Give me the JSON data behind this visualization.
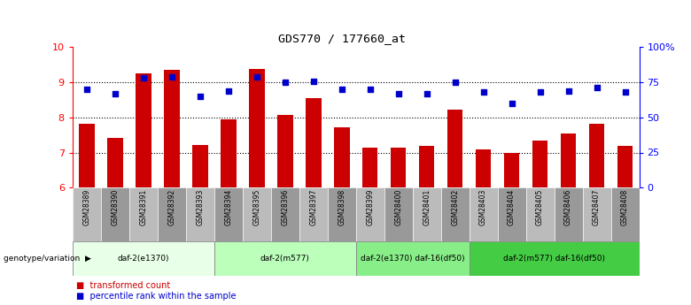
{
  "title": "GDS770 / 177660_at",
  "samples": [
    "GSM28389",
    "GSM28390",
    "GSM28391",
    "GSM28392",
    "GSM28393",
    "GSM28394",
    "GSM28395",
    "GSM28396",
    "GSM28397",
    "GSM28398",
    "GSM28399",
    "GSM28400",
    "GSM28401",
    "GSM28402",
    "GSM28403",
    "GSM28404",
    "GSM28405",
    "GSM28406",
    "GSM28407",
    "GSM28408"
  ],
  "bar_values": [
    7.82,
    7.42,
    9.25,
    9.35,
    7.22,
    7.95,
    9.38,
    8.08,
    8.55,
    7.72,
    7.15,
    7.15,
    7.18,
    8.22,
    7.1,
    6.98,
    7.35,
    7.55,
    7.82,
    7.18
  ],
  "dot_values_pct": [
    70,
    67,
    78,
    79,
    65,
    69,
    79,
    75,
    76,
    70,
    70,
    67,
    67,
    75,
    68,
    60,
    68,
    69,
    71,
    68
  ],
  "ylim_left": [
    6,
    10
  ],
  "ylim_right": [
    0,
    100
  ],
  "yticks_left": [
    6,
    7,
    8,
    9,
    10
  ],
  "yticks_right": [
    0,
    25,
    50,
    75,
    100
  ],
  "ytick_labels_right": [
    "0",
    "25",
    "50",
    "75",
    "100%"
  ],
  "bar_color": "#cc0000",
  "dot_color": "#0000cc",
  "groups": [
    {
      "label": "daf-2(e1370)",
      "start": 0,
      "end": 4,
      "color": "#e8ffe8"
    },
    {
      "label": "daf-2(m577)",
      "start": 5,
      "end": 9,
      "color": "#bbffbb"
    },
    {
      "label": "daf-2(e1370) daf-16(df50)",
      "start": 10,
      "end": 13,
      "color": "#88ee88"
    },
    {
      "label": "daf-2(m577) daf-16(df50)",
      "start": 14,
      "end": 19,
      "color": "#44cc44"
    }
  ],
  "genotype_label": "genotype/variation",
  "legend_bar_label": "transformed count",
  "legend_dot_label": "percentile rank within the sample",
  "bg_color": "#ffffff"
}
